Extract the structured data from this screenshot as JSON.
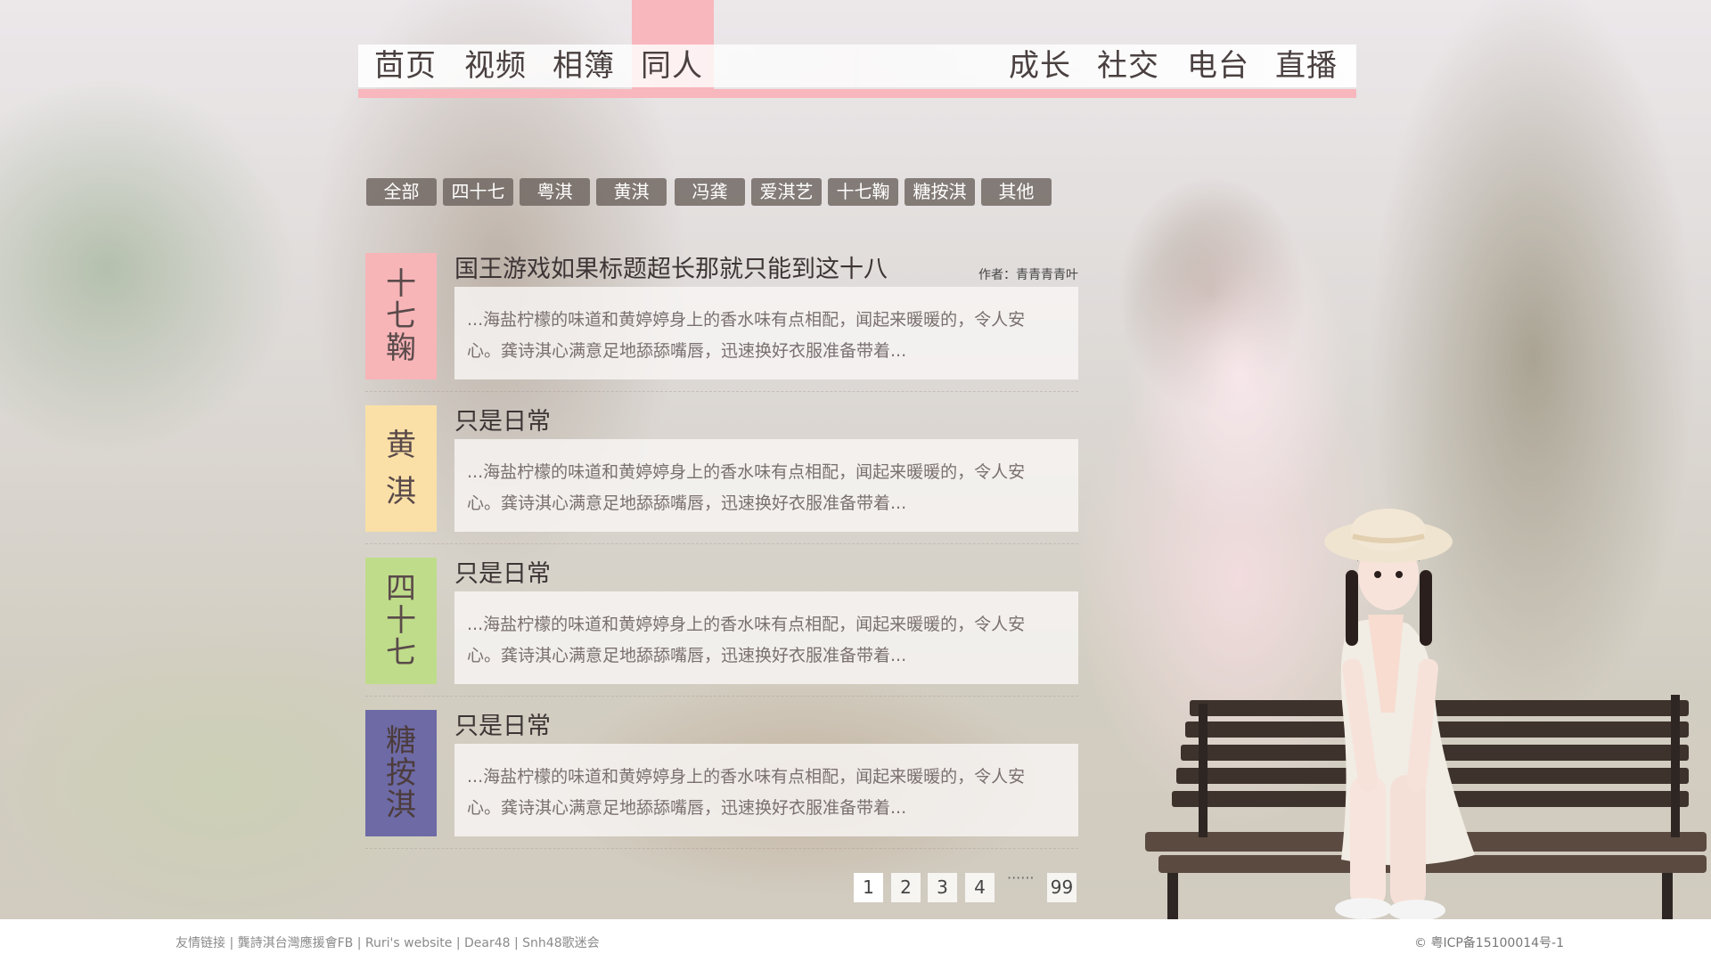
{
  "nav": {
    "left": [
      "茴页",
      "视频",
      "相簿",
      "同人"
    ],
    "right": [
      "成长",
      "社交",
      "电台",
      "直播"
    ],
    "active": "同人",
    "active_color": "#f7b7bd"
  },
  "categories": [
    "全部",
    "四十七",
    "粤淇",
    "黄淇",
    "冯龚",
    "爱淇艺",
    "十七鞠",
    "糖按淇",
    "其他"
  ],
  "posts": [
    {
      "tag": "十七鞠",
      "tag_chars": [
        "十",
        "七",
        "鞠"
      ],
      "tag_color": "#f7b5b8",
      "title": "国王游戏如果标题超长那就只能到这十八",
      "author": "作者：青青青青叶",
      "excerpt_line1": "...海盐柠檬的味道和黄婷婷身上的香水味有点相配，闻起来暖暖的，令人安",
      "excerpt_line2": "心。龚诗淇心满意足地舔舔嘴唇，迅速换好衣服准备带着..."
    },
    {
      "tag": "黄淇",
      "tag_chars": [
        "黄",
        "淇"
      ],
      "tag_color": "#fae0a7",
      "title": "只是日常",
      "author": "",
      "excerpt_line1": "...海盐柠檬的味道和黄婷婷身上的香水味有点相配，闻起来暖暖的，令人安",
      "excerpt_line2": "心。龚诗淇心满意足地舔舔嘴唇，迅速换好衣服准备带着..."
    },
    {
      "tag": "四十七",
      "tag_chars": [
        "四",
        "十",
        "七"
      ],
      "tag_color": "#bfdc8a",
      "title": "只是日常",
      "author": "",
      "excerpt_line1": "...海盐柠檬的味道和黄婷婷身上的香水味有点相配，闻起来暖暖的，令人安",
      "excerpt_line2": "心。龚诗淇心满意足地舔舔嘴唇，迅速换好衣服准备带着..."
    },
    {
      "tag": "糖按淇",
      "tag_chars": [
        "糖",
        "按",
        "淇"
      ],
      "tag_color": "#6d6aa6",
      "title": "只是日常",
      "author": "",
      "excerpt_line1": "...海盐柠檬的味道和黄婷婷身上的香水味有点相配，闻起来暖暖的，令人安",
      "excerpt_line2": "心。龚诗淇心满意足地舔舔嘴唇，迅速换好衣服准备带着..."
    }
  ],
  "pagination": {
    "pages": [
      "1",
      "2",
      "3",
      "4"
    ],
    "ellipsis": "······",
    "last": "99",
    "current": "1"
  },
  "footer": {
    "links_prefix": "友情链接",
    "links": [
      "龔詩淇台灣應援會FB",
      "Ruri's website",
      "Dear48",
      "Snh48歌迷会"
    ],
    "separator": " | ",
    "copyright": "© 粤ICP备15100014号-1"
  }
}
